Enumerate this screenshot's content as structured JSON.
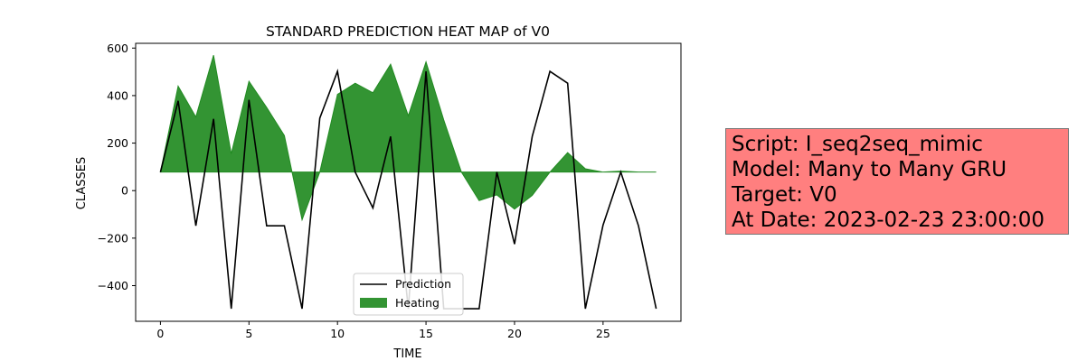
{
  "chart_data": {
    "type": "line",
    "title": "STANDARD PREDICTION HEAT MAP of V0",
    "xlabel": "TIME",
    "ylabel": "CLASSES",
    "xlim": [
      -1.4,
      29.4
    ],
    "ylim": [
      -550,
      620
    ],
    "xticks": [
      0,
      5,
      10,
      15,
      20,
      25
    ],
    "yticks": [
      -400,
      -200,
      0,
      200,
      400,
      600
    ],
    "baseline": 78,
    "x": [
      0,
      1,
      2,
      3,
      4,
      5,
      6,
      7,
      8,
      9,
      10,
      11,
      12,
      13,
      14,
      15,
      16,
      17,
      18,
      19,
      20,
      21,
      22,
      23,
      24,
      25,
      26,
      27,
      28
    ],
    "series": [
      {
        "name": "Prediction",
        "kind": "line",
        "color": "#000000",
        "values": [
          78,
          378,
          -148,
          302,
          -497,
          382,
          -148,
          -148,
          -497,
          305,
          502,
          78,
          -73,
          228,
          -497,
          502,
          -497,
          -497,
          -497,
          78,
          -225,
          228,
          502,
          452,
          -497,
          -145,
          78,
          -148,
          -497
        ]
      },
      {
        "name": "Heating",
        "kind": "area",
        "color": "#228b22",
        "values": [
          78,
          440,
          310,
          570,
          155,
          460,
          350,
          232,
          -123,
          78,
          405,
          452,
          412,
          532,
          315,
          542,
          298,
          78,
          -42,
          -18,
          -78,
          -20,
          78,
          160,
          92,
          78,
          82,
          78,
          78
        ]
      }
    ],
    "legend": {
      "position": "lower-center",
      "entries": [
        "Prediction",
        "Heating"
      ]
    },
    "grid": false
  },
  "info": {
    "script": "Script: I_seq2seq_mimic",
    "model": "Model: Many to Many GRU",
    "target": "Target: V0",
    "date": "At Date: 2023-02-23 23:00:00"
  }
}
